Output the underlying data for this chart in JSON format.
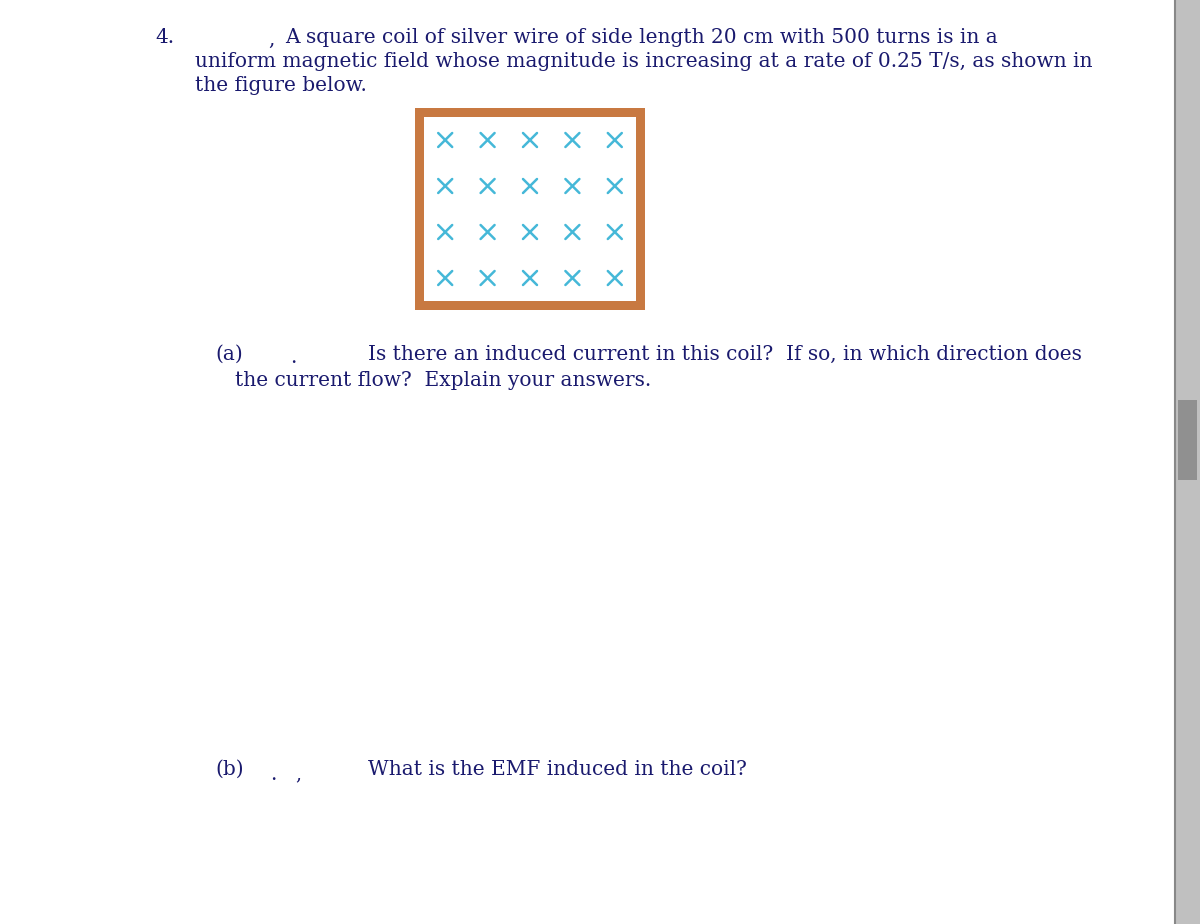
{
  "problem_number": "4.",
  "problem_comma": ",",
  "problem_text_line1": "A square coil of silver wire of side length 20 cm with 500 turns is in a",
  "problem_text_line2": "uniform magnetic field whose magnitude is increasing at a rate of 0.25 T/s, as shown in",
  "problem_text_line3": "the figure below.",
  "part_a_label": "(a)",
  "part_a_dot": ".",
  "part_a_text_line1": "Is there an induced current in this coil?  If so, in which direction does",
  "part_a_text_line2": "the current flow?  Explain your answers.",
  "part_b_label": "(b)",
  "part_b_dot": ".",
  "part_b_comma": ",",
  "part_b_text": "What is the EMF induced in the coil?",
  "box_outer_color": "#c87941",
  "cross_color": "#45b8d8",
  "cross_rows": 4,
  "cross_cols": 5,
  "text_color": "#1a1a6e",
  "bg_color": "#ffffff",
  "page_bg": "#e8e8e8",
  "right_bar_color": "#9e9e9e",
  "right_bar_dark": "#707070",
  "font_size_main": 14.5,
  "fig_width": 12.0,
  "fig_height": 9.24
}
